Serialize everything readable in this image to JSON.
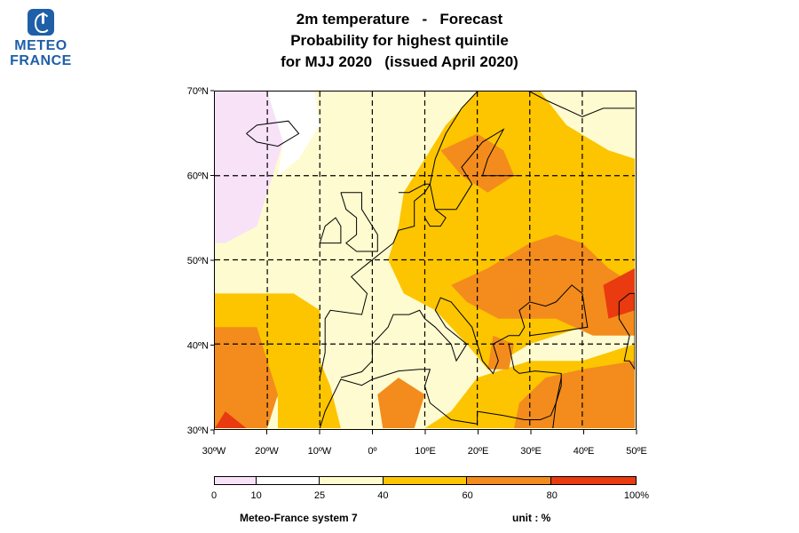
{
  "logo": {
    "line1": "METEO",
    "line2": "FRANCE"
  },
  "title": {
    "line1": "2m temperature   -   Forecast",
    "line2": "Probability for highest quintile",
    "line3": "for MJJ 2020   (issued April 2020)"
  },
  "map": {
    "lat_labels": [
      "70ºN",
      "60ºN",
      "50ºN",
      "40ºN",
      "30ºN"
    ],
    "lon_labels": [
      "30ºW",
      "20ºW",
      "10ºW",
      "0º",
      "10ºE",
      "20ºE",
      "30ºE",
      "40ºE",
      "50ºE"
    ],
    "lat_range": [
      30,
      70
    ],
    "lon_range": [
      -30,
      50
    ],
    "colors": {
      "c0_10": "#f7e2f7",
      "c10_25": "#ffffff",
      "c25_40": "#fffbcc",
      "c40_60": "#fcc500",
      "c60_80": "#f38c1c",
      "c80_100": "#e93a10"
    }
  },
  "legend": {
    "breaks": [
      "0",
      "10",
      "25",
      "40",
      "60",
      "80",
      "100%"
    ],
    "colors": [
      "#f7e2f7",
      "#ffffff",
      "#fffbcc",
      "#fcc500",
      "#f38c1c",
      "#e93a10"
    ]
  },
  "footer": {
    "model": "Meteo-France system 7",
    "unit": "unit : %"
  }
}
